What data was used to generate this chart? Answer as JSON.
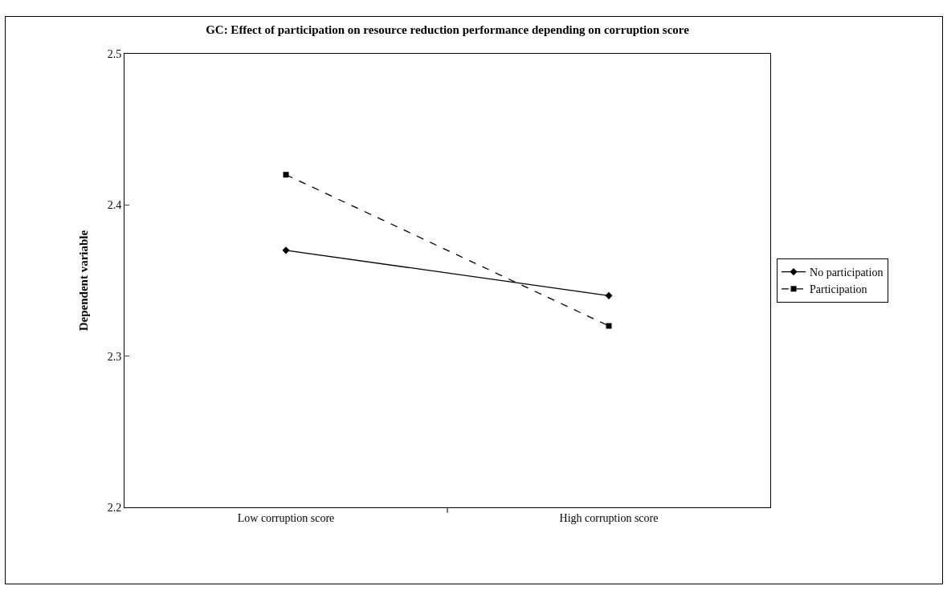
{
  "chart_data": {
    "type": "line",
    "title": "GC: Effect of participation on resource reduction performance depending on corruption score",
    "ylabel": "Dependent variable",
    "categories": [
      "Low corruption score",
      "High corruption score"
    ],
    "series": [
      {
        "name": "No participation",
        "color": "#000000",
        "values": [
          2.37,
          2.34
        ],
        "marker": "diamond",
        "line_style": "solid"
      },
      {
        "name": "Participation",
        "color": "#000000",
        "values": [
          2.42,
          2.32
        ],
        "marker": "square",
        "line_style": "dashed"
      }
    ],
    "ylim": [
      2.2,
      2.5
    ],
    "yticks": [
      2.2,
      2.3,
      2.4,
      2.5
    ],
    "grid": false,
    "legend": "right"
  }
}
